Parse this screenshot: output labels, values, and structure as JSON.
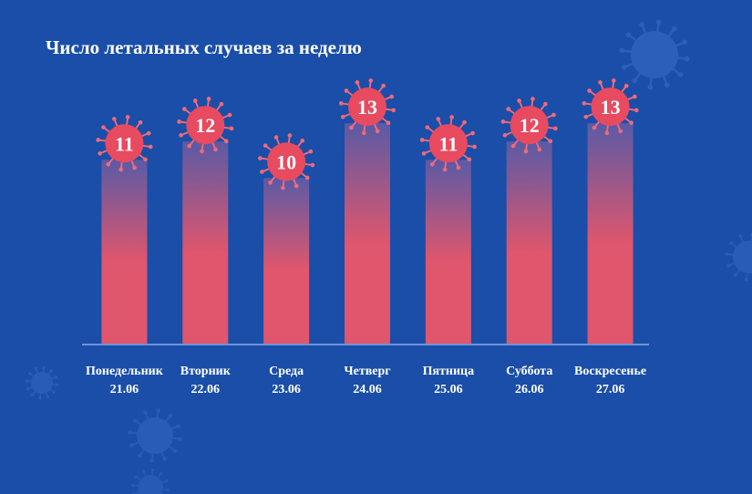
{
  "colors": {
    "background": "#1a4ea8",
    "bar_top": "#5a5aa6",
    "bar_bottom": "#e0566c",
    "virus": "#e84a5f",
    "virus_spike": "#f06a7a",
    "baseline": "#6f93d4",
    "decor": "#3a6ec8"
  },
  "chart_data": {
    "type": "bar",
    "title": "Число летальных случаев за неделю",
    "categories": [
      "Понедельник",
      "Вторник",
      "Среда",
      "Четверг",
      "Пятница",
      "Суббота",
      "Воскресенье"
    ],
    "dates": [
      "21.06",
      "22.06",
      "23.06",
      "24.06",
      "25.06",
      "26.06",
      "27.06"
    ],
    "values": [
      11,
      12,
      10,
      13,
      11,
      12,
      13
    ],
    "data_labels": [
      "11",
      "12",
      "10",
      "13",
      "11",
      "12",
      "13"
    ],
    "legend": "none",
    "grid": false,
    "marker_icon": "virus-icon"
  }
}
